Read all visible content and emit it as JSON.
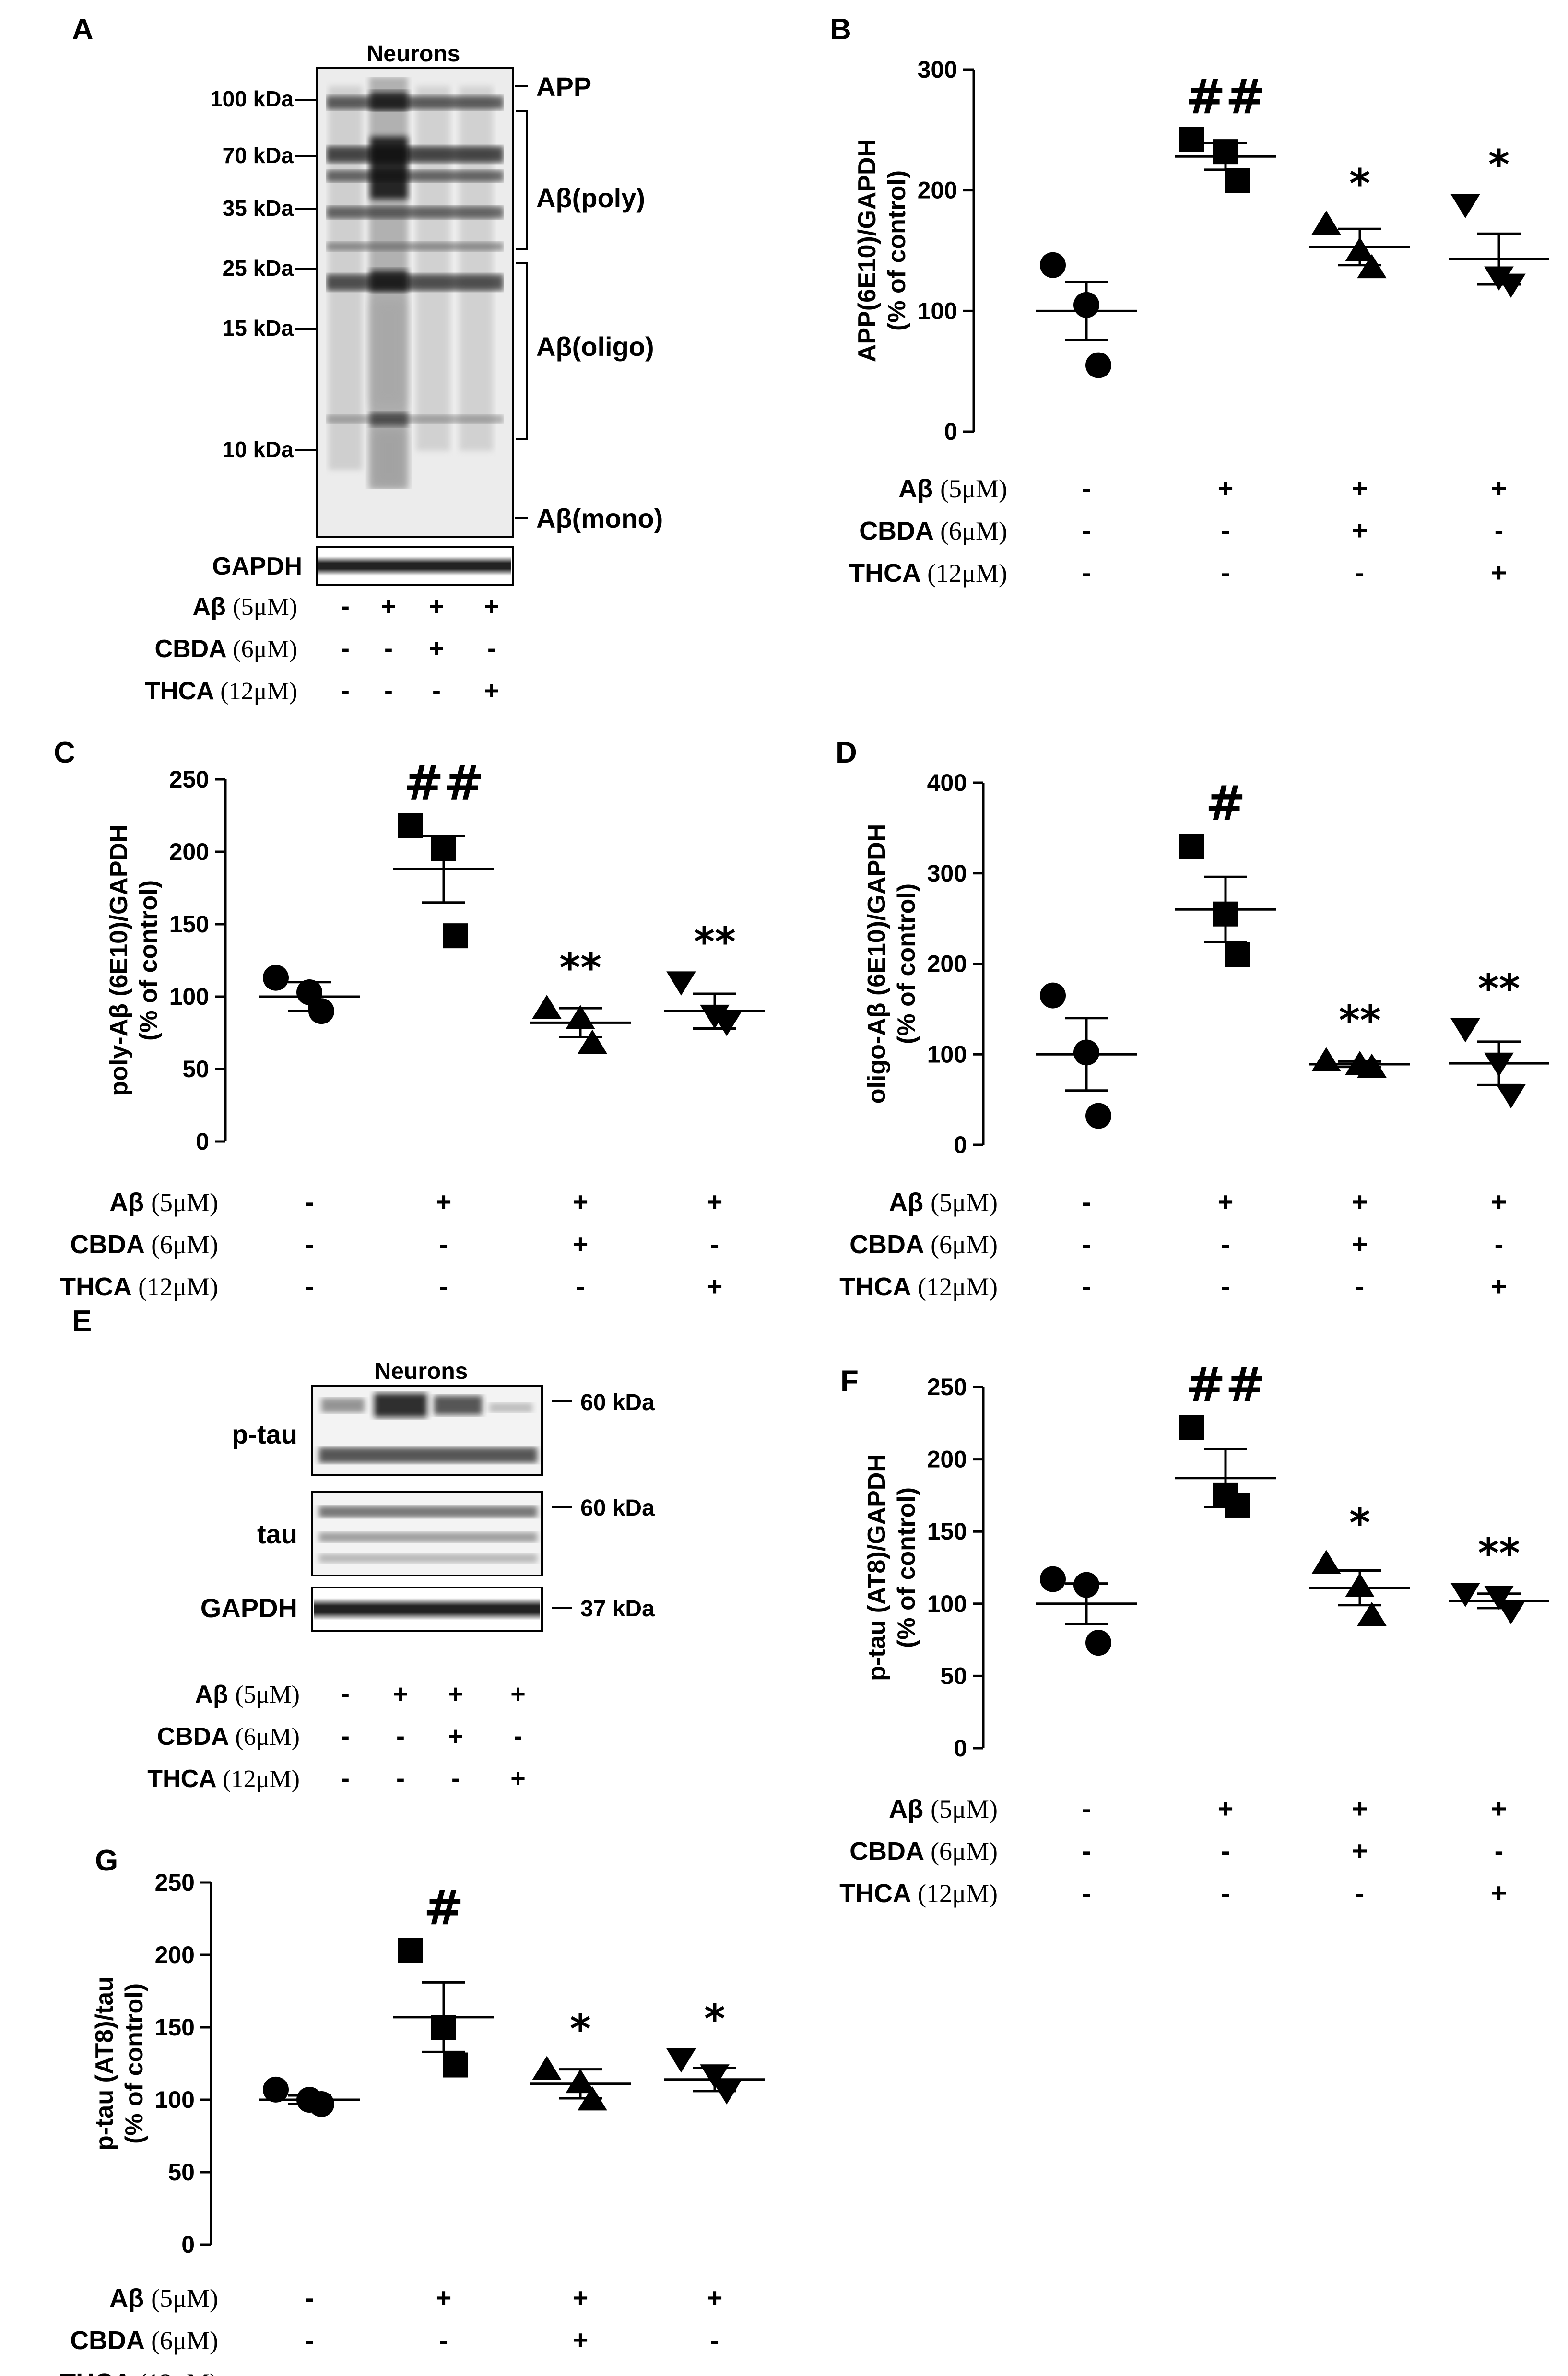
{
  "panel_letters": [
    "A",
    "B",
    "C",
    "D",
    "E",
    "F",
    "G"
  ],
  "treatments": {
    "rows": [
      {
        "name": "Aβ",
        "dose": "(5μM)"
      },
      {
        "name": "CBDA",
        "dose": "(6μM)"
      },
      {
        "name": "THCA",
        "dose": "(12μM)"
      }
    ],
    "signs": [
      [
        "-",
        "+",
        "+",
        "+"
      ],
      [
        "-",
        "-",
        "+",
        "-"
      ],
      [
        "-",
        "-",
        "-",
        "+"
      ]
    ]
  },
  "blot_a": {
    "title": "Neurons",
    "markers": [
      "100 kDa",
      "70 kDa",
      "35 kDa",
      "25 kDa",
      "15 kDa",
      "10 kDa"
    ],
    "band_labels": [
      "APP",
      "Aβ(poly)",
      "Aβ(oligo)",
      "Aβ(mono)"
    ],
    "loading_label": "GAPDH"
  },
  "blot_e": {
    "title": "Neurons",
    "rows": [
      "p-tau",
      "tau",
      "GAPDH"
    ],
    "markers": [
      "60 kDa",
      "60 kDa",
      "37 kDa"
    ]
  },
  "chart_data": [
    {
      "panel": "B",
      "type": "scatter",
      "ylabel_lines": [
        "APP(6E10)/GAPDH",
        "(% of control)"
      ],
      "ylim": [
        0,
        300
      ],
      "yticks": [
        0,
        100,
        200,
        300
      ],
      "groups": [
        {
          "marker": "circle",
          "points": [
            138,
            105,
            55
          ],
          "mean": 100,
          "sem": 24,
          "sig": ""
        },
        {
          "marker": "square",
          "points": [
            242,
            232,
            208
          ],
          "mean": 228,
          "sem": 11,
          "sig": "##"
        },
        {
          "marker": "triangle-up",
          "points": [
            172,
            150,
            136
          ],
          "mean": 153,
          "sem": 15,
          "sig": "*"
        },
        {
          "marker": "triangle-down",
          "points": [
            188,
            128,
            122
          ],
          "mean": 143,
          "sem": 21,
          "sig": "*"
        }
      ]
    },
    {
      "panel": "C",
      "type": "scatter",
      "ylabel_lines": [
        "poly-Aβ (6E10)/GAPDH",
        "(% of control)"
      ],
      "ylim": [
        0,
        250
      ],
      "yticks": [
        0,
        50,
        100,
        150,
        200,
        250
      ],
      "groups": [
        {
          "marker": "circle",
          "points": [
            113,
            103,
            90
          ],
          "mean": 100,
          "sem": 10,
          "sig": ""
        },
        {
          "marker": "square",
          "points": [
            218,
            202,
            142
          ],
          "mean": 188,
          "sem": 23,
          "sig": "##"
        },
        {
          "marker": "triangle-up",
          "points": [
            92,
            85,
            68
          ],
          "mean": 82,
          "sem": 10,
          "sig": "**"
        },
        {
          "marker": "triangle-down",
          "points": [
            110,
            87,
            82
          ],
          "mean": 90,
          "sem": 12,
          "sig": "**"
        }
      ]
    },
    {
      "panel": "D",
      "type": "scatter",
      "ylabel_lines": [
        "oligo-Aβ (6E10)/GAPDH",
        "(% of control)"
      ],
      "ylim": [
        0,
        400
      ],
      "yticks": [
        0,
        100,
        200,
        300,
        400
      ],
      "groups": [
        {
          "marker": "circle",
          "points": [
            165,
            102,
            32
          ],
          "mean": 100,
          "sem": 40,
          "sig": ""
        },
        {
          "marker": "square",
          "points": [
            330,
            255,
            210
          ],
          "mean": 260,
          "sem": 36,
          "sig": "#"
        },
        {
          "marker": "triangle-up",
          "points": [
            93,
            89,
            86
          ],
          "mean": 89,
          "sem": 3,
          "sig": "**"
        },
        {
          "marker": "triangle-down",
          "points": [
            128,
            90,
            55
          ],
          "mean": 90,
          "sem": 24,
          "sig": "**"
        }
      ]
    },
    {
      "panel": "F",
      "type": "scatter",
      "ylabel_lines": [
        "p-tau (AT8)/GAPDH",
        "(% of control)"
      ],
      "ylim": [
        0,
        250
      ],
      "yticks": [
        0,
        50,
        100,
        150,
        200,
        250
      ],
      "groups": [
        {
          "marker": "circle",
          "points": [
            117,
            113,
            73
          ],
          "mean": 100,
          "sem": 14,
          "sig": ""
        },
        {
          "marker": "square",
          "points": [
            222,
            175,
            168
          ],
          "mean": 187,
          "sem": 20,
          "sig": "##"
        },
        {
          "marker": "triangle-up",
          "points": [
            128,
            112,
            92
          ],
          "mean": 111,
          "sem": 12,
          "sig": "*"
        },
        {
          "marker": "triangle-down",
          "points": [
            107,
            105,
            95
          ],
          "mean": 102,
          "sem": 5,
          "sig": "**"
        }
      ]
    },
    {
      "panel": "G",
      "type": "scatter",
      "ylabel_lines": [
        "p-tau (AT8)/tau",
        "(% of control)"
      ],
      "ylim": [
        0,
        250
      ],
      "yticks": [
        0,
        50,
        100,
        150,
        200,
        250
      ],
      "groups": [
        {
          "marker": "circle",
          "points": [
            107,
            100,
            97
          ],
          "mean": 100,
          "sem": 3,
          "sig": ""
        },
        {
          "marker": "square",
          "points": [
            203,
            150,
            124
          ],
          "mean": 157,
          "sem": 24,
          "sig": "#"
        },
        {
          "marker": "triangle-up",
          "points": [
            121,
            112,
            100
          ],
          "mean": 111,
          "sem": 10,
          "sig": "*"
        },
        {
          "marker": "triangle-down",
          "points": [
            128,
            117,
            106
          ],
          "mean": 114,
          "sem": 8,
          "sig": "*"
        }
      ]
    }
  ]
}
